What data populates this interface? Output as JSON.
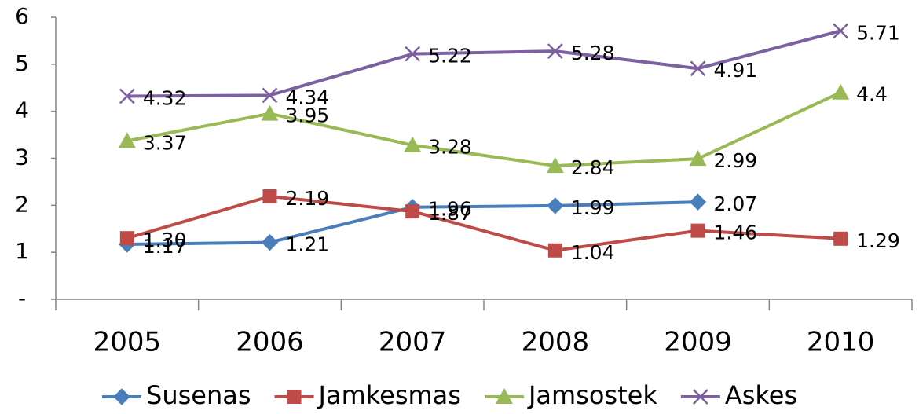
{
  "chart_data": {
    "type": "line",
    "categories": [
      "2005",
      "2006",
      "2007",
      "2008",
      "2009",
      "2010"
    ],
    "series": [
      {
        "name": "Susenas",
        "color": "#4a7ebb",
        "marker": "diamond",
        "values": [
          1.17,
          1.21,
          1.96,
          1.99,
          2.07,
          null
        ]
      },
      {
        "name": "Jamkesmas",
        "color": "#be4b48",
        "marker": "square",
        "values": [
          1.3,
          2.19,
          1.87,
          1.04,
          1.46,
          1.29
        ],
        "value_labels": [
          "1.30",
          "2.19",
          "1.87",
          "1.04",
          "1.46",
          "1.29"
        ]
      },
      {
        "name": "Jamsostek",
        "color": "#98b954",
        "marker": "triangle",
        "values": [
          3.37,
          3.95,
          3.28,
          2.84,
          2.99,
          4.4
        ]
      },
      {
        "name": "Askes",
        "color": "#7d60a0",
        "marker": "x",
        "values": [
          4.32,
          4.34,
          5.22,
          5.28,
          4.91,
          5.71
        ]
      }
    ],
    "ylim": [
      0,
      6
    ],
    "yticks": [
      {
        "value": 0,
        "label": "-"
      },
      1,
      2,
      3,
      4,
      5,
      6
    ],
    "legend": "bottom"
  }
}
